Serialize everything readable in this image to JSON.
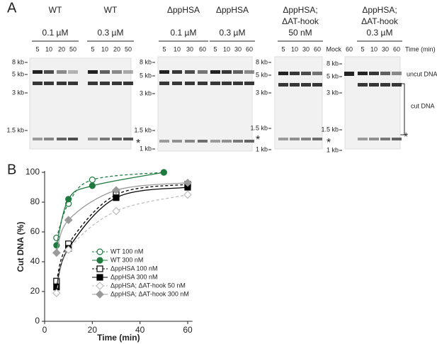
{
  "panel_a": {
    "label": "A",
    "time_label": "Time (min)",
    "uncut_label": "uncut DNA",
    "cut_label": "cut DNA",
    "gels": [
      {
        "groups": [
          {
            "name": "WT",
            "conc": "0.1 µM",
            "lanes": [
              "5",
              "10",
              "20",
              "50"
            ]
          },
          {
            "name": "WT",
            "conc": "0.3 µM",
            "lanes": [
              "5",
              "10",
              "20",
              "50"
            ]
          }
        ],
        "markers": [
          "8 kb",
          "5 kb",
          "3 kb",
          "1.5 kb"
        ],
        "asterisk": "*"
      },
      {
        "groups": [
          {
            "name": "ΔppHSA",
            "conc": "0.1 µM",
            "lanes": [
              "5",
              "10",
              "30",
              "60"
            ]
          },
          {
            "name": "ΔppHSA",
            "conc": "0.3 µM",
            "lanes": [
              "5",
              "10",
              "30",
              "60"
            ]
          }
        ],
        "markers": [
          "8 kb",
          "5 kb",
          "3 kb",
          "1.5 kb",
          "1 kb"
        ],
        "asterisk": "*"
      },
      {
        "groups": [
          {
            "name": "ΔppHSA;",
            "name2": "ΔAT-hook",
            "conc": "50 nM",
            "lanes": [
              "5",
              "10",
              "30",
              "60"
            ]
          }
        ],
        "markers": [
          "8 kb",
          "5 kb",
          "3 kb",
          "1.5 kb",
          "1 kb"
        ],
        "asterisk": "*"
      },
      {
        "mock": {
          "name": "Mock",
          "lanes": [
            "60"
          ]
        },
        "groups": [
          {
            "name": "ΔppHSA;",
            "name2": "ΔAT-hook",
            "conc": "0.3 µM",
            "lanes": [
              "5",
              "10",
              "30",
              "60"
            ]
          }
        ],
        "markers": [
          "8 kb",
          "5 kb",
          "3 kb",
          "1.5 kb",
          "1 kb"
        ],
        "asterisk": "*"
      }
    ]
  },
  "panel_b": {
    "label": "B"
  },
  "chart_data": {
    "type": "line",
    "x_label": "Time (min)",
    "y_label": "Cut DNA (%)",
    "xlim": [
      0,
      62
    ],
    "ylim": [
      0,
      100
    ],
    "xticks": [
      0,
      20,
      40,
      60
    ],
    "yticks": [
      0,
      20,
      40,
      60,
      80,
      100
    ],
    "series": [
      {
        "name": "WT 100 nM",
        "color": "#1f7a3f",
        "marker": "circle",
        "filled": false,
        "dashed": true,
        "x": [
          5,
          10,
          20,
          50
        ],
        "values": [
          56,
          79,
          95,
          100
        ]
      },
      {
        "name": "WT 300 nM",
        "color": "#1f7a3f",
        "marker": "circle",
        "filled": true,
        "dashed": false,
        "x": [
          5,
          10,
          20,
          50
        ],
        "values": [
          51,
          82,
          91,
          100
        ]
      },
      {
        "name": "ΔppHSA 100 nM",
        "color": "#000000",
        "marker": "square",
        "filled": false,
        "dashed": true,
        "x": [
          5,
          10,
          30,
          60
        ],
        "values": [
          27,
          52,
          85,
          92
        ]
      },
      {
        "name": "ΔppHSA 300 nM",
        "color": "#000000",
        "marker": "square",
        "filled": true,
        "dashed": false,
        "x": [
          5,
          10,
          30,
          60
        ],
        "values": [
          23,
          49,
          83,
          90
        ]
      },
      {
        "name": "ΔppHSA; ΔAT-hook 50 nM",
        "color": "#bdbdbd",
        "marker": "diamond",
        "filled": false,
        "dashed": true,
        "x": [
          5,
          10,
          30,
          60
        ],
        "values": [
          19,
          48,
          74,
          85
        ]
      },
      {
        "name": "ΔppHSA; ΔAT-hook 300 nM",
        "color": "#9a9a9a",
        "marker": "diamond",
        "filled": true,
        "dashed": false,
        "x": [
          5,
          10,
          30,
          60
        ],
        "values": [
          46,
          68,
          88,
          93
        ]
      }
    ]
  }
}
